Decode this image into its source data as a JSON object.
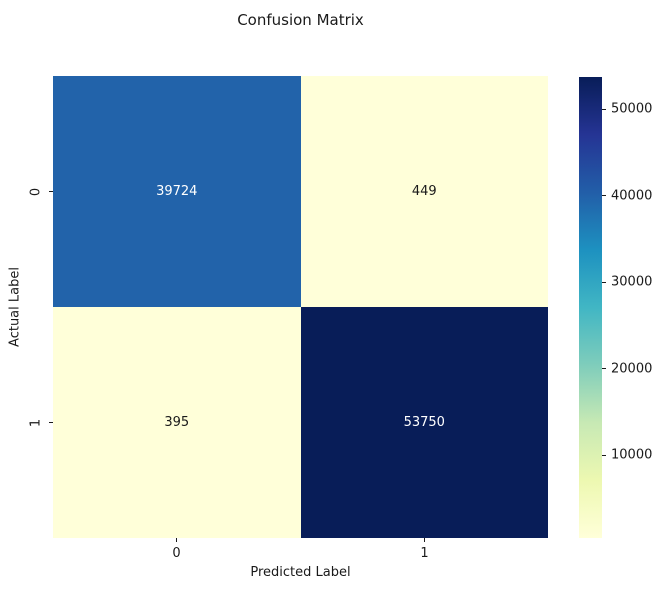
{
  "figure": {
    "background": "#ffffff",
    "text_color": "#1a1a1a"
  },
  "chart_data": {
    "type": "heatmap",
    "title": "Confusion Matrix",
    "xlabel": "Predicted Label",
    "ylabel": "Actual Label",
    "x_ticklabels": [
      "0",
      "1"
    ],
    "y_ticklabels": [
      "0",
      "1"
    ],
    "matrix": [
      [
        39724,
        449
      ],
      [
        395,
        53750
      ]
    ],
    "vmin": 395,
    "vmax": 53750,
    "colormap": "YlGnBu",
    "colormap_stops": [
      "#ffffd9",
      "#edf8b1",
      "#c7e9b4",
      "#7fcdbb",
      "#41b6c4",
      "#1d91c0",
      "#225ea8",
      "#253494",
      "#081d58"
    ],
    "colorbar_ticks": [
      10000,
      20000,
      30000,
      40000,
      50000
    ],
    "cell_colors": [
      [
        "#2263aa",
        "#ffffd9"
      ],
      [
        "#ffffd9",
        "#081d58"
      ]
    ],
    "cell_text_colors": [
      [
        "#ffffff",
        "#1a1a1a"
      ],
      [
        "#1a1a1a",
        "#ffffff"
      ]
    ],
    "legend_position": "right-colorbar",
    "grid": false
  }
}
